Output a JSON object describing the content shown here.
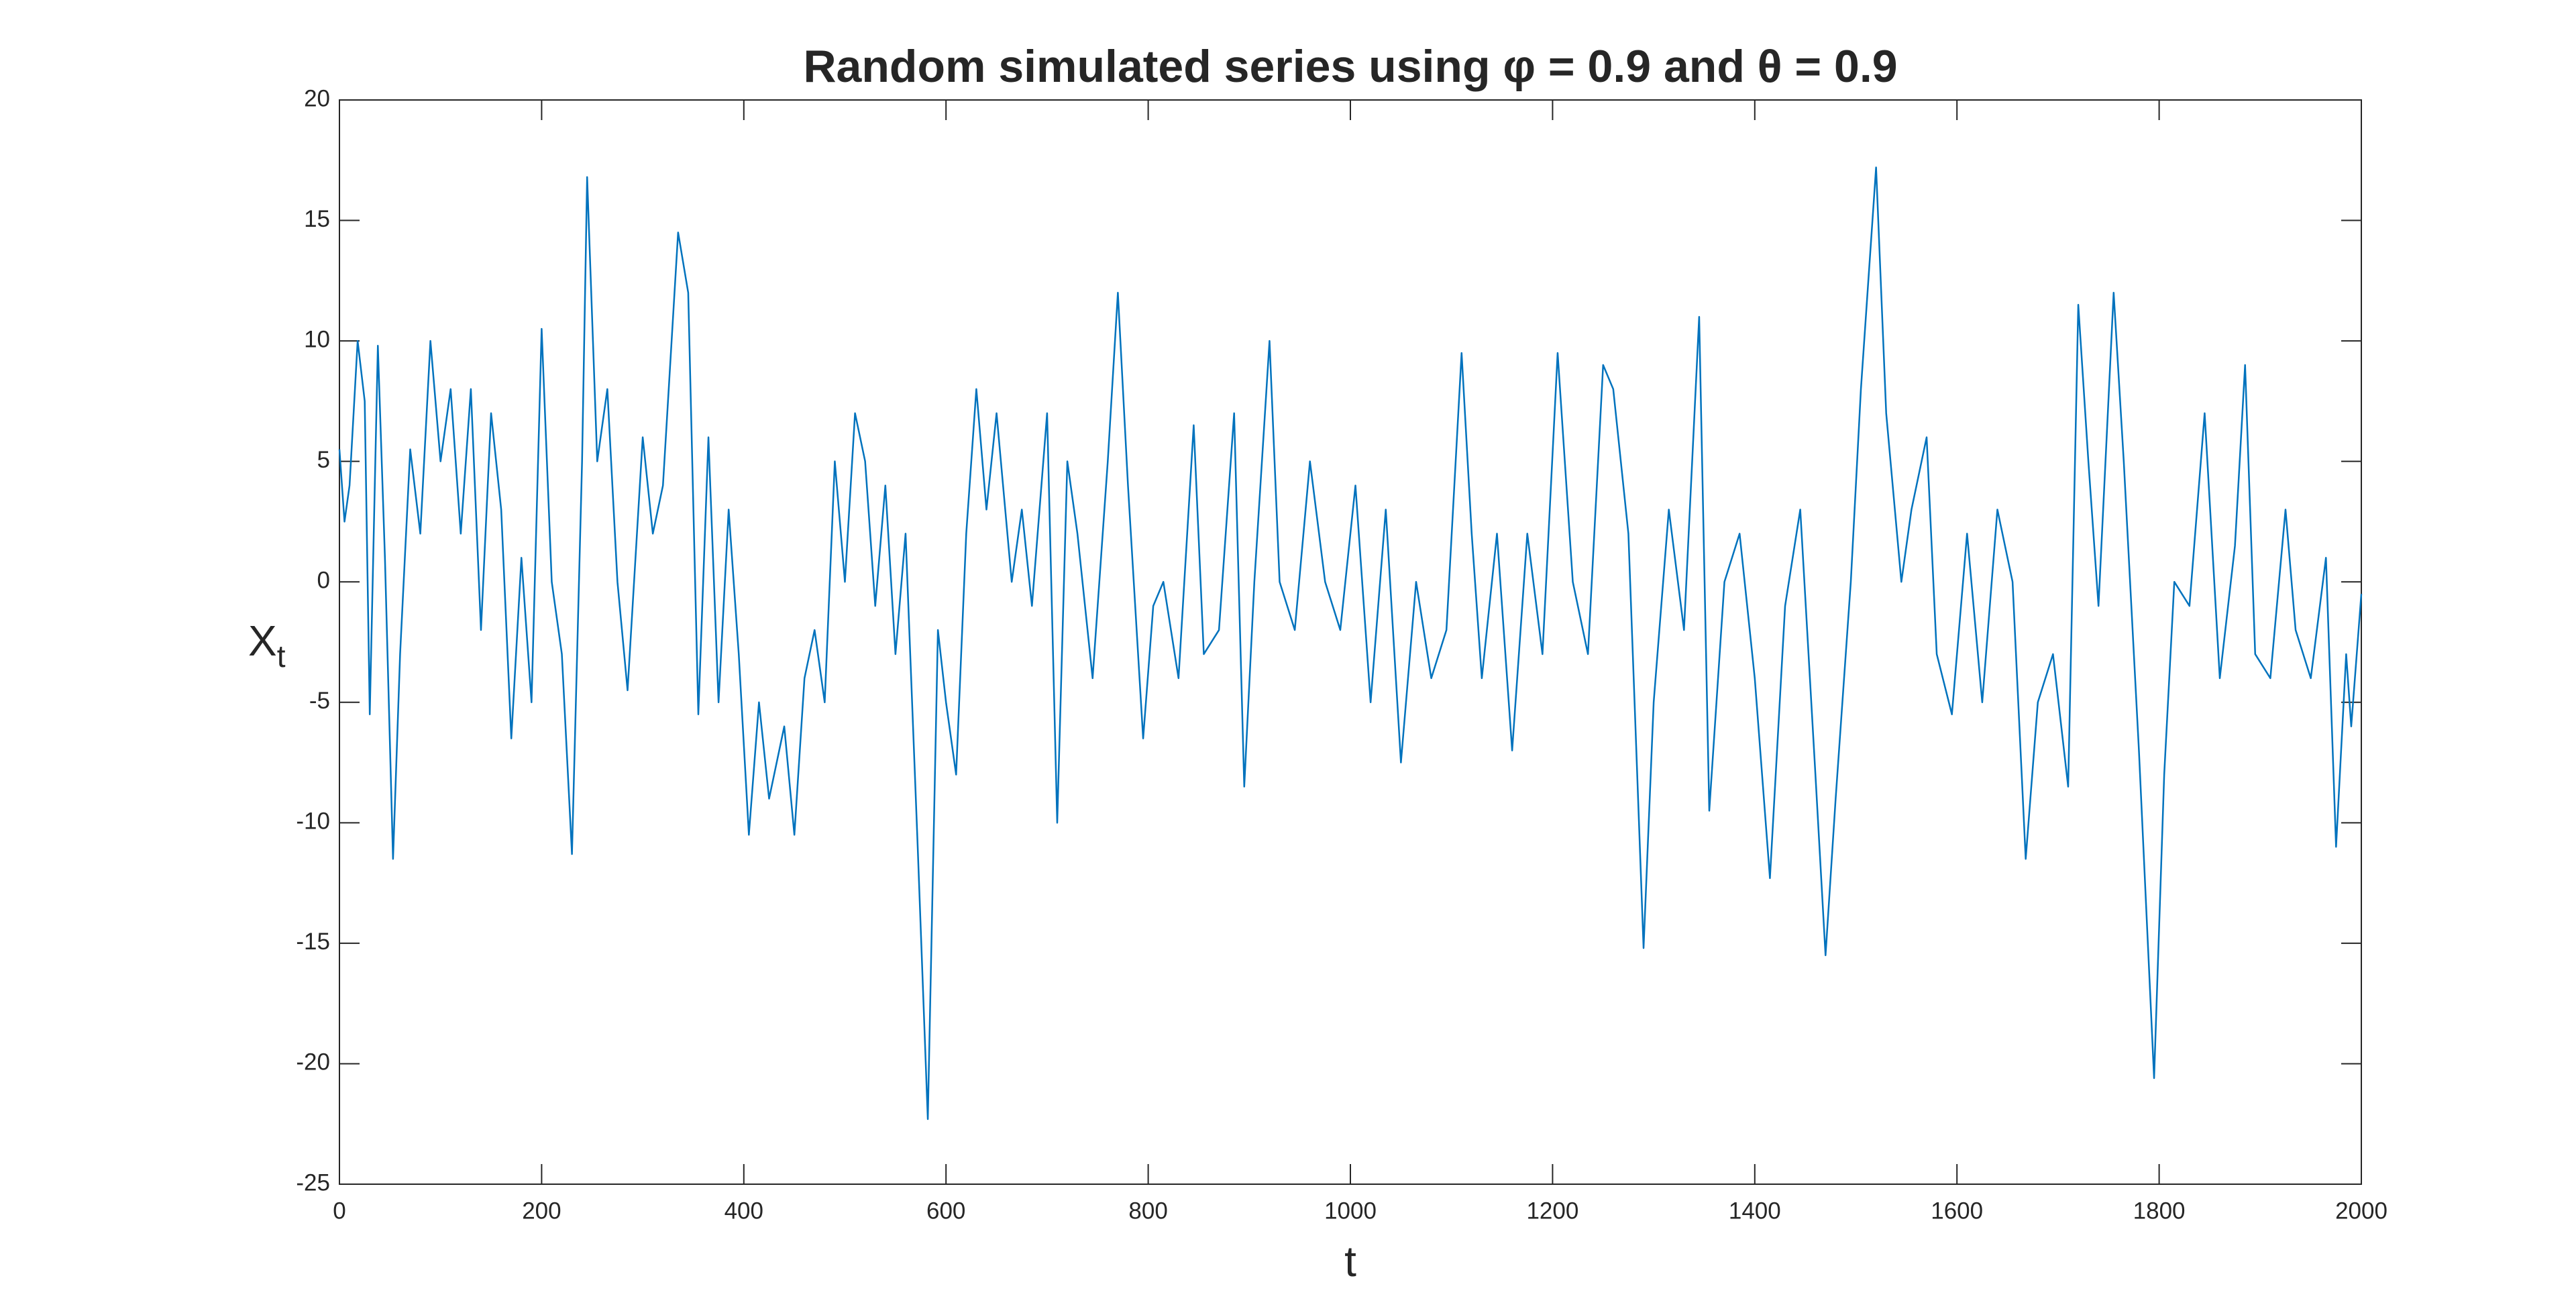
{
  "chart_data": {
    "type": "line",
    "title": "Random simulated series using φ = 0.9 and θ = 0.9",
    "x_label": "t",
    "y_label": "X",
    "y_label_subscript": "t",
    "x": [
      0,
      5,
      10,
      18,
      25,
      30,
      38,
      45,
      53,
      60,
      70,
      80,
      90,
      100,
      110,
      120,
      130,
      140,
      150,
      160,
      170,
      180,
      190,
      200,
      210,
      220,
      230,
      240,
      245,
      255,
      265,
      275,
      285,
      300,
      310,
      320,
      335,
      345,
      355,
      365,
      375,
      385,
      395,
      405,
      415,
      425,
      440,
      450,
      460,
      470,
      480,
      490,
      500,
      510,
      520,
      530,
      540,
      550,
      560,
      572,
      582,
      592,
      600,
      610,
      620,
      630,
      640,
      650,
      665,
      675,
      685,
      700,
      710,
      720,
      730,
      745,
      760,
      770,
      780,
      795,
      805,
      815,
      830,
      845,
      855,
      870,
      885,
      895,
      905,
      920,
      930,
      945,
      960,
      975,
      990,
      1005,
      1020,
      1035,
      1050,
      1065,
      1080,
      1095,
      1110,
      1120,
      1130,
      1145,
      1160,
      1175,
      1190,
      1205,
      1220,
      1235,
      1250,
      1260,
      1275,
      1290,
      1300,
      1315,
      1330,
      1345,
      1355,
      1370,
      1385,
      1400,
      1415,
      1430,
      1445,
      1460,
      1470,
      1480,
      1495,
      1505,
      1520,
      1530,
      1545,
      1555,
      1570,
      1580,
      1595,
      1610,
      1625,
      1640,
      1655,
      1668,
      1680,
      1695,
      1710,
      1720,
      1730,
      1740,
      1755,
      1765,
      1780,
      1795,
      1805,
      1815,
      1830,
      1845,
      1860,
      1875,
      1885,
      1895,
      1910,
      1925,
      1935,
      1950,
      1965,
      1975,
      1985,
      1990,
      2000
    ],
    "values": [
      5.5,
      2.5,
      4,
      10,
      7.5,
      -5.5,
      9.8,
      1,
      -11.5,
      -3,
      5.5,
      2,
      10,
      5,
      8,
      2,
      8,
      -2,
      7,
      3,
      -6.5,
      1,
      -5,
      10.5,
      0,
      -3,
      -11.3,
      5,
      16.8,
      5,
      8,
      0,
      -4.5,
      6,
      2,
      4,
      14.5,
      12,
      -5.5,
      6,
      -5,
      3,
      -3,
      -10.5,
      -5,
      -9,
      -6,
      -10.5,
      -4,
      -2,
      -5,
      5,
      0,
      7,
      5,
      -1,
      4,
      -3,
      2,
      -11,
      -22.3,
      -2,
      -5,
      -8,
      2,
      8,
      3,
      7,
      0,
      3,
      -1,
      7,
      -10,
      5,
      2,
      -4,
      5,
      12,
      4,
      -6.5,
      -1,
      0,
      -4,
      6.5,
      -3,
      -2,
      7,
      -8.5,
      0,
      10,
      0,
      -2,
      5,
      0,
      -2,
      4,
      -5,
      3,
      -7.5,
      0,
      -4,
      -2,
      9.5,
      2,
      -4,
      2,
      -7,
      2,
      -3,
      9.5,
      0,
      -3,
      9,
      8,
      2,
      -15.2,
      -5,
      3,
      -2,
      11,
      -9.5,
      0,
      2,
      -4,
      -12.3,
      -1,
      3,
      -8,
      -15.5,
      -9,
      0,
      8,
      17.2,
      7,
      0,
      3,
      6,
      -3,
      -5.5,
      2,
      -5,
      3,
      0,
      -11.5,
      -5,
      -3,
      -8.5,
      11.5,
      5,
      -1,
      12,
      5,
      -7,
      -20.6,
      -8,
      0,
      -1,
      7,
      -4,
      1.5,
      9,
      -3,
      -4,
      3,
      -2,
      -4,
      1,
      -11,
      -3,
      -6,
      -0.5
    ],
    "color": "#0072bd",
    "xlim": [
      0,
      2000
    ],
    "xticks": [
      0,
      200,
      400,
      600,
      800,
      1000,
      1200,
      1400,
      1600,
      1800,
      2000
    ],
    "ylim": [
      -25,
      20
    ],
    "yticks": [
      -25,
      -20,
      -15,
      -10,
      -5,
      0,
      5,
      10,
      15,
      20
    ]
  }
}
